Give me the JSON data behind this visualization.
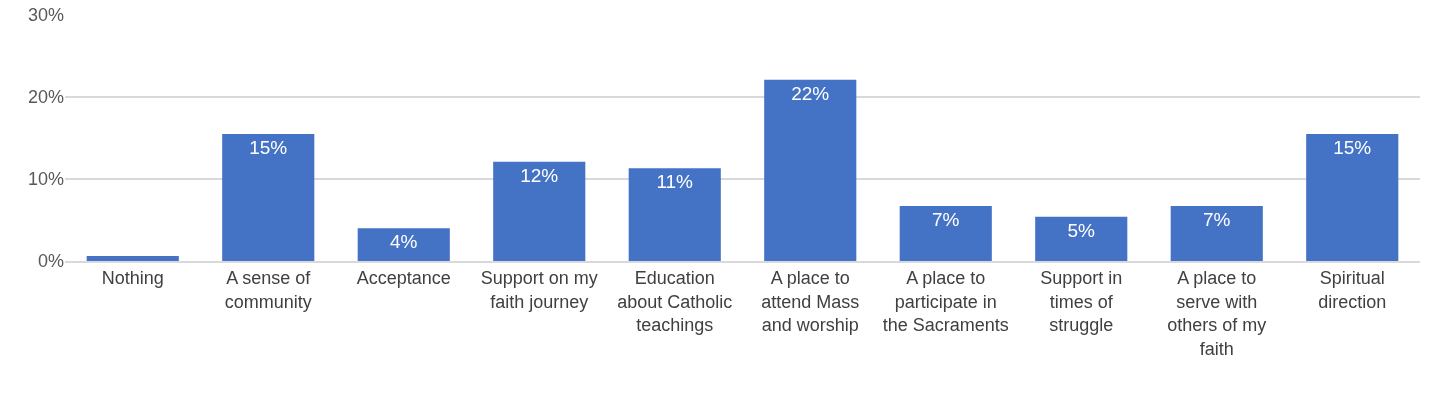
{
  "chart_data": {
    "type": "bar",
    "categories": [
      "Nothing",
      "A sense of community",
      "Acceptance",
      "Support on my faith journey",
      "Education about Catholic teachings",
      "A place to attend Mass and worship",
      "A place to participate in the Sacraments",
      "Support in times of struggle",
      "A place to serve with others of my faith",
      "Spiritual direction"
    ],
    "values": [
      0.6,
      15.5,
      4.0,
      12.1,
      11.3,
      22.1,
      6.7,
      5.4,
      6.7,
      15.5
    ],
    "value_labels": [
      null,
      "15%",
      "4%",
      "12%",
      "11%",
      "22%",
      "7%",
      "5%",
      "7%",
      "15%"
    ],
    "color": "#4472c4",
    "ylim": [
      0,
      30
    ],
    "yticks": [
      {
        "value": 0,
        "label": "0%"
      },
      {
        "value": 10,
        "label": "10%"
      },
      {
        "value": 20,
        "label": "20%"
      },
      {
        "value": 30,
        "label": "30%"
      }
    ],
    "grid": "y",
    "legend": false
  }
}
